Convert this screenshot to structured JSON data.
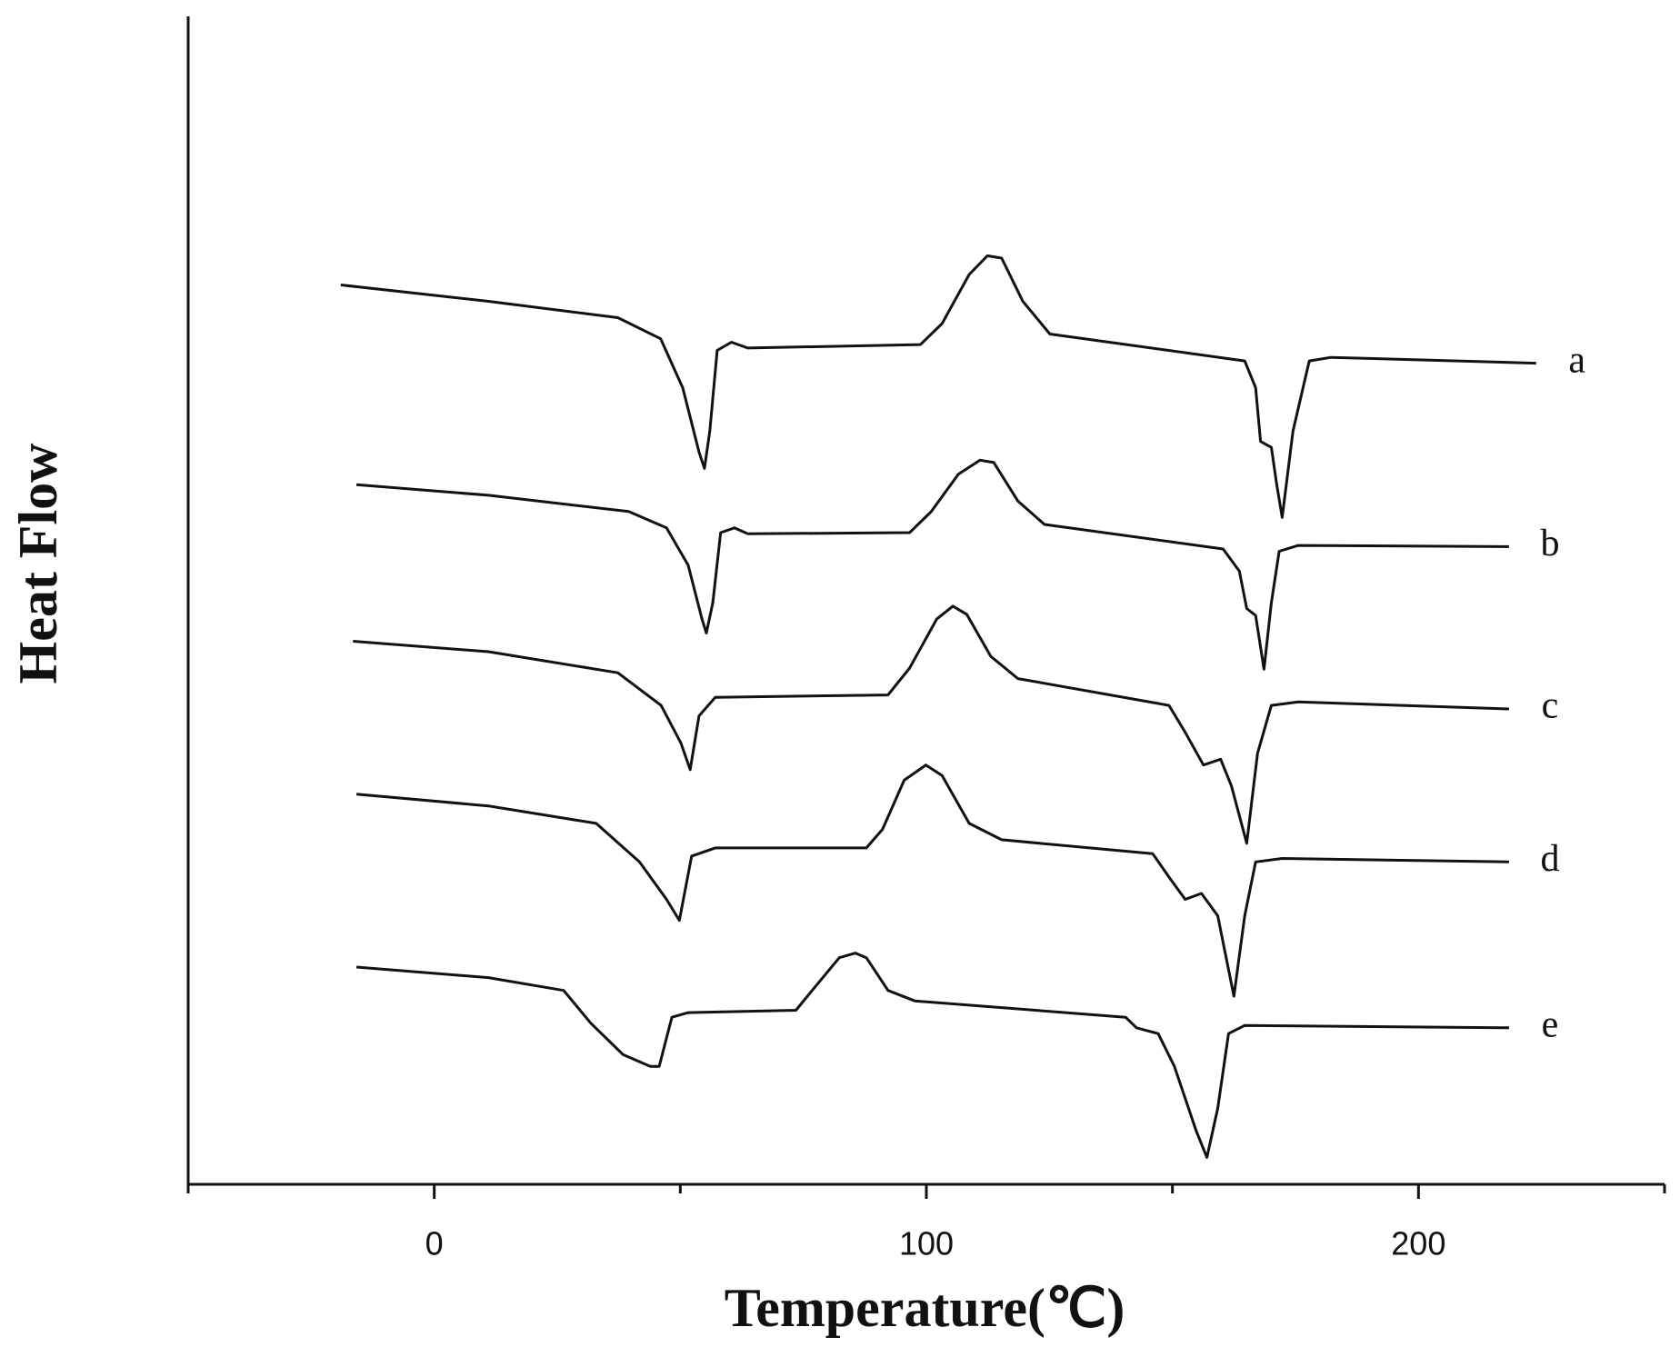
{
  "chart_data": {
    "type": "line",
    "xlabel": "Temperature(℃)",
    "ylabel": "Heat Flow",
    "xlim": [
      -50,
      250
    ],
    "xticks": [
      0,
      100,
      200
    ],
    "xminorticks": [
      -50,
      50,
      150,
      250
    ],
    "ylim": [
      0,
      100
    ],
    "color": "#111111",
    "series": [
      {
        "name": "a",
        "x": [
          -19,
          11,
          37.3,
          46,
          50.5,
          53.8,
          54.9,
          56,
          57.5,
          60.4,
          63.7,
          98.8,
          103.2,
          108.7,
          112.4,
          115.3,
          119.6,
          125.1,
          164.7,
          166.9,
          167.9,
          170.1,
          171.2,
          172.3,
          174.5,
          177.8,
          182.2,
          223.9
        ],
        "values": [
          77.0,
          75.6,
          74.2,
          72.4,
          68.2,
          62.7,
          61.3,
          64.5,
          71.4,
          72.1,
          71.6,
          71.9,
          73.7,
          77.9,
          79.5,
          79.3,
          75.6,
          72.8,
          70.5,
          68.2,
          63.6,
          63.1,
          59.9,
          57.1,
          64.5,
          70.5,
          70.8,
          70.3
        ]
      },
      {
        "name": "b",
        "x": [
          -15.8,
          11,
          39.5,
          47.2,
          51.6,
          54.4,
          55.3,
          56.6,
          58.2,
          61,
          63.7,
          96.6,
          101,
          106.5,
          110.9,
          113.7,
          118.6,
          124,
          160.3,
          163.6,
          165.1,
          166.9,
          168.6,
          170.1,
          171.7,
          175.6,
          218.4
        ],
        "values": [
          59.9,
          59.0,
          57.6,
          56.2,
          53.0,
          48.4,
          47.2,
          49.8,
          55.8,
          56.2,
          55.7,
          55.8,
          57.6,
          60.8,
          62.0,
          61.8,
          58.5,
          56.5,
          54.4,
          52.5,
          49.3,
          48.7,
          44.1,
          49.8,
          54.2,
          54.7,
          54.6
        ]
      },
      {
        "name": "c",
        "x": [
          -16.5,
          11,
          37.3,
          46.1,
          50.1,
          52,
          53.8,
          57.1,
          92.2,
          96.6,
          102.1,
          105.4,
          108.2,
          113.1,
          118.6,
          149.3,
          152.6,
          156.3,
          159.8,
          162,
          165.1,
          167.3,
          170.1,
          175.6,
          218.4
        ],
        "values": [
          46.5,
          45.6,
          43.8,
          41.0,
          37.8,
          35.5,
          40.1,
          41.7,
          41.9,
          44.2,
          48.4,
          49.5,
          48.8,
          45.2,
          43.3,
          41.0,
          38.7,
          35.9,
          36.4,
          34.1,
          29.2,
          36.9,
          41.0,
          41.3,
          40.7
        ]
      },
      {
        "name": "d",
        "x": [
          -15.8,
          11,
          32.9,
          41.7,
          47.2,
          49.8,
          52.3,
          57.1,
          87.8,
          91.1,
          95.5,
          99.9,
          103.2,
          108.7,
          115.3,
          146,
          149.3,
          152.6,
          155.9,
          159.2,
          162.5,
          164.7,
          166.9,
          172.3,
          218.4
        ],
        "values": [
          33.4,
          32.4,
          30.9,
          27.6,
          24.4,
          22.6,
          28.1,
          28.8,
          28.8,
          30.4,
          34.6,
          35.9,
          35.0,
          30.9,
          29.5,
          28.3,
          26.3,
          24.4,
          24.9,
          23.0,
          16.1,
          23.0,
          27.6,
          27.9,
          27.6
        ]
      },
      {
        "name": "e",
        "x": [
          -15.8,
          11,
          26.3,
          31.8,
          38.4,
          43.9,
          45.7,
          48.3,
          51.6,
          73.5,
          76.8,
          82.3,
          85.6,
          87.8,
          92.2,
          97.7,
          140.5,
          142.7,
          147.1,
          150.4,
          154.8,
          157,
          159.2,
          161.4,
          164.7,
          218.4
        ],
        "values": [
          18.6,
          17.7,
          16.6,
          13.8,
          11.1,
          10.1,
          10.1,
          14.3,
          14.7,
          14.9,
          16.6,
          19.4,
          19.8,
          19.4,
          16.6,
          15.7,
          14.3,
          13.4,
          12.9,
          10.1,
          4.6,
          2.3,
          6.5,
          12.9,
          13.6,
          13.4
        ]
      }
    ]
  }
}
